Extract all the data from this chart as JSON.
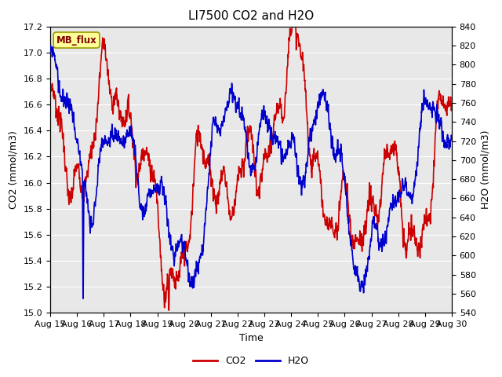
{
  "title": "LI7500 CO2 and H2O",
  "xlabel": "Time",
  "ylabel_left": "CO2 (mmol/m3)",
  "ylabel_right": "H2O (mmol/m3)",
  "co2_ylim": [
    15.0,
    17.2
  ],
  "h2o_ylim": [
    540,
    840
  ],
  "co2_yticks": [
    15.0,
    15.2,
    15.4,
    15.6,
    15.8,
    16.0,
    16.2,
    16.4,
    16.6,
    16.8,
    17.0,
    17.2
  ],
  "h2o_yticks": [
    540,
    560,
    580,
    600,
    620,
    640,
    660,
    680,
    700,
    720,
    740,
    760,
    780,
    800,
    820,
    840
  ],
  "xtick_labels": [
    "Aug 15",
    "Aug 16",
    "Aug 17",
    "Aug 18",
    "Aug 19",
    "Aug 20",
    "Aug 21",
    "Aug 22",
    "Aug 23",
    "Aug 24",
    "Aug 25",
    "Aug 26",
    "Aug 27",
    "Aug 28",
    "Aug 29",
    "Aug 30"
  ],
  "co2_color": "#cc0000",
  "h2o_color": "#0000cc",
  "fig_bg_color": "#ffffff",
  "plot_bg_color": "#e8e8e8",
  "grid_color": "#ffffff",
  "label_box_color": "#ffff99",
  "label_box_edge": "#999900",
  "label_box_text": "MB_flux",
  "legend_co2": "CO2",
  "legend_h2o": "H2O",
  "title_fontsize": 11,
  "axis_label_fontsize": 9,
  "tick_fontsize": 8,
  "legend_fontsize": 9,
  "line_width": 1.2
}
